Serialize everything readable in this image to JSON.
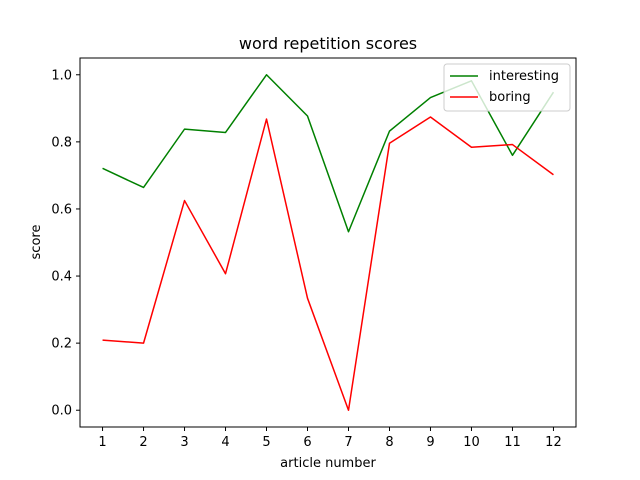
{
  "chart_data": {
    "type": "line",
    "title": "word repetition scores",
    "xlabel": "article number",
    "ylabel": "score",
    "x": [
      1,
      2,
      3,
      4,
      5,
      6,
      7,
      8,
      9,
      10,
      11,
      12
    ],
    "xticks": [
      "1",
      "2",
      "3",
      "4",
      "5",
      "6",
      "7",
      "8",
      "9",
      "10",
      "11",
      "12"
    ],
    "xlim": [
      0.45,
      12.55
    ],
    "yticks": [
      "0.0",
      "0.2",
      "0.4",
      "0.6",
      "0.8",
      "1.0"
    ],
    "ytick_values": [
      0.0,
      0.2,
      0.4,
      0.6,
      0.8,
      1.0
    ],
    "ylim": [
      -0.05,
      1.05
    ],
    "grid": false,
    "legend_position": "top-right",
    "series": [
      {
        "name": "interesting",
        "color": "#008000",
        "values": [
          0.721,
          0.664,
          0.838,
          0.828,
          1.0,
          0.877,
          0.532,
          0.832,
          0.932,
          0.982,
          0.76,
          0.948
        ]
      },
      {
        "name": "boring",
        "color": "#ff0000",
        "values": [
          0.209,
          0.2,
          0.625,
          0.407,
          0.868,
          0.334,
          0.0,
          0.796,
          0.874,
          0.784,
          0.792,
          0.702
        ]
      }
    ]
  }
}
